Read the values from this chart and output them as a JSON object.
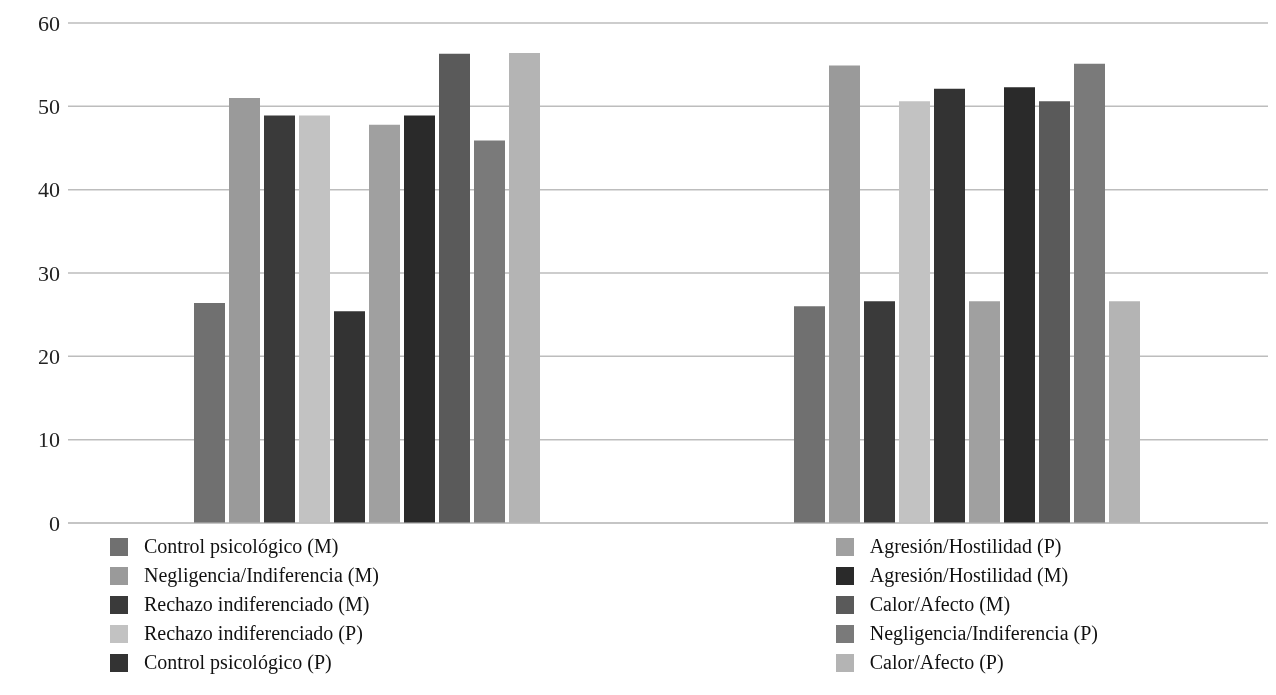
{
  "chart_data": {
    "type": "bar",
    "categories": [
      null,
      null
    ],
    "ylim": [
      0,
      60
    ],
    "yticks": [
      0,
      10,
      20,
      30,
      40,
      50,
      60
    ],
    "grid": "y",
    "legend": "bottom",
    "series": [
      {
        "name": "Control psicológico (M)",
        "color": "#707070",
        "values": [
          26.4,
          26.0
        ]
      },
      {
        "name": "Negligencia/Indiferencia (M)",
        "color": "#9a9a9a",
        "values": [
          51.0,
          54.9
        ]
      },
      {
        "name": "Rechazo indiferenciado (M)",
        "color": "#3a3a3a",
        "values": [
          48.9,
          26.6
        ]
      },
      {
        "name": "Rechazo indiferenciado (P)",
        "color": "#c2c2c2",
        "values": [
          48.9,
          50.6
        ]
      },
      {
        "name": "Control psicológico (P)",
        "color": "#333333",
        "values": [
          25.4,
          52.1
        ]
      },
      {
        "name": "Agresión/Hostilidad (P)",
        "color": "#a0a0a0",
        "values": [
          47.8,
          26.6
        ]
      },
      {
        "name": "Agresión/Hostilidad (M)",
        "color": "#2a2a2a",
        "values": [
          48.9,
          52.3
        ]
      },
      {
        "name": "Calor/Afecto (M)",
        "color": "#5a5a5a",
        "values": [
          56.3,
          50.6
        ]
      },
      {
        "name": "Negligencia/Indiferencia (P)",
        "color": "#7a7a7a",
        "values": [
          45.9,
          55.1
        ]
      },
      {
        "name": "Calor/Afecto (P)",
        "color": "#b4b4b4",
        "values": [
          56.4,
          26.6
        ]
      }
    ]
  }
}
